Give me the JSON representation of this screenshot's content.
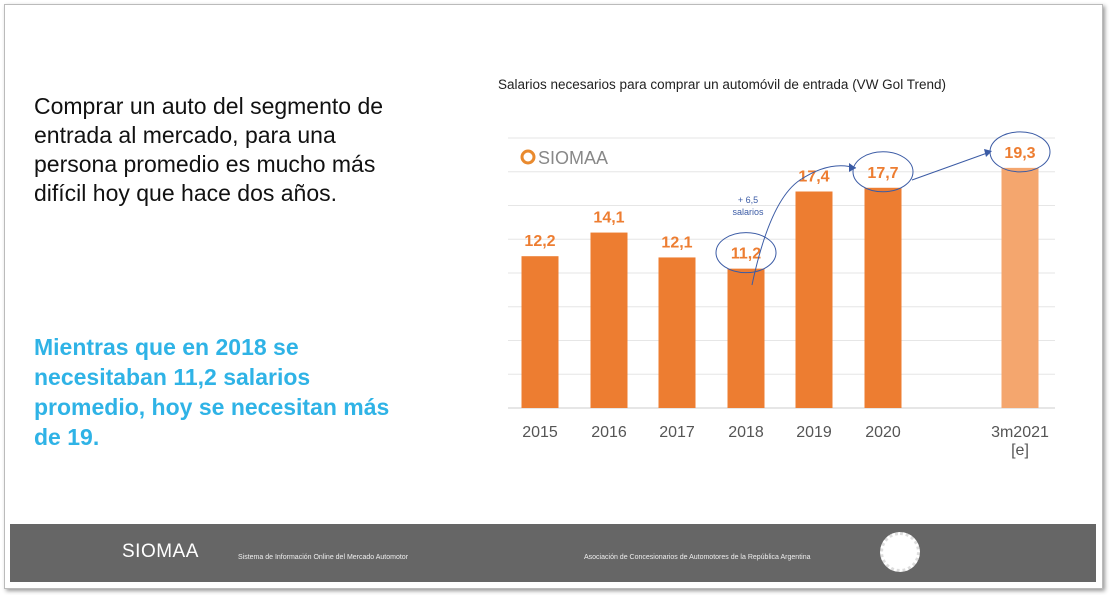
{
  "slide": {
    "lead_text": "Comprar un auto del segmento de entrada al mercado, para una persona promedio es mucho más difícil hoy que hace dos años.",
    "highlight_text": "Mientras que en 2018 se necesitaban 11,2 salarios promedio, hoy se necesitan más de 19."
  },
  "footer": {
    "logo": "SIOMAA",
    "left_text": "Sistema de Información Online del Mercado Automotor",
    "right_text": "Asociación de Concesionarios de Automotores de la República Argentina"
  },
  "chart_data": {
    "type": "bar",
    "title": "Salarios necesarios para comprar un automóvil de entrada (VW Gol Trend)",
    "watermark": "SIOMAA",
    "categories": [
      "2015",
      "2016",
      "2017",
      "2018",
      "2019",
      "2020",
      "3m2021 [e]"
    ],
    "values": [
      12.2,
      14.1,
      12.1,
      11.2,
      17.4,
      17.7,
      19.3
    ],
    "data_labels": [
      "12,2",
      "14,1",
      "12,1",
      "11,2",
      "17,4",
      "17,7",
      "19,3"
    ],
    "annotation": {
      "line1": "+ 6,5",
      "line2": "salarios"
    },
    "circled": [
      "2018",
      "2020",
      "3m2021 [e]"
    ],
    "ylim": [
      0,
      21.7
    ],
    "grid": true,
    "colors": {
      "bar": "#ED7D31",
      "estimate_bar": "#F4A66E",
      "label": "#ED7D31",
      "annotation": "#3B5BA5"
    }
  }
}
